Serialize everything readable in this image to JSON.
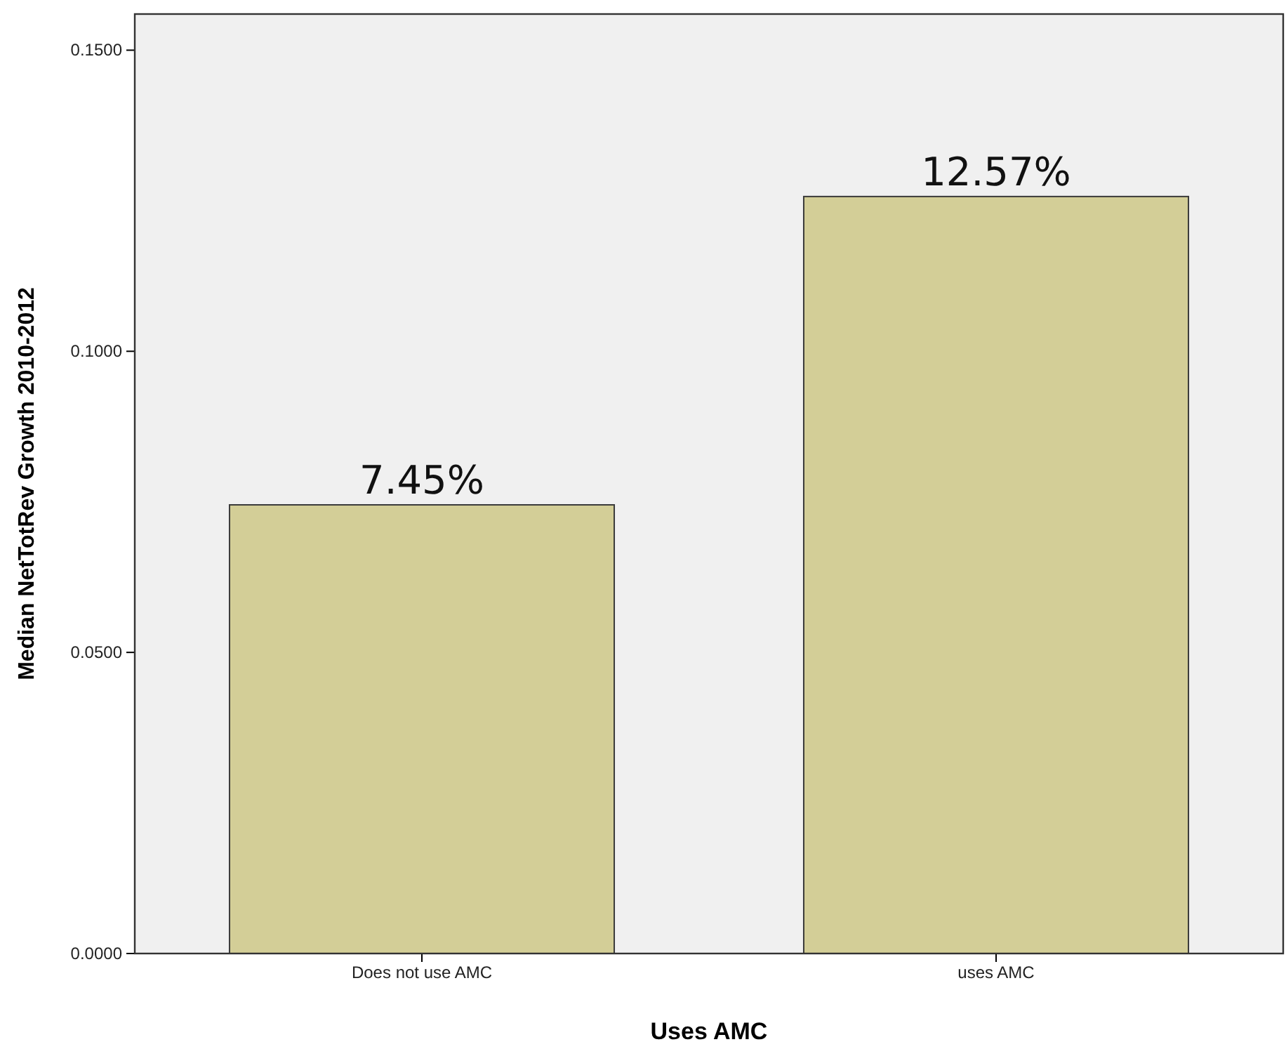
{
  "chart_data": {
    "type": "bar",
    "xlabel": "Uses AMC",
    "ylabel": "Median NetTotRev Growth 2010-2012",
    "categories": [
      "Does not use AMC",
      "uses AMC"
    ],
    "values": [
      0.0745,
      0.1257
    ],
    "color": "#d3ce97",
    "value_labels": [
      "7.45%",
      "12.57%"
    ],
    "ylim": [
      0,
      0.156
    ],
    "yticks": [
      {
        "value": 0,
        "label": "0.0000"
      },
      {
        "value": 0.05,
        "label": "0.0500"
      },
      {
        "value": 0.1,
        "label": "0.1000"
      },
      {
        "value": 0.15,
        "label": "0.1500"
      }
    ],
    "grid": false
  }
}
